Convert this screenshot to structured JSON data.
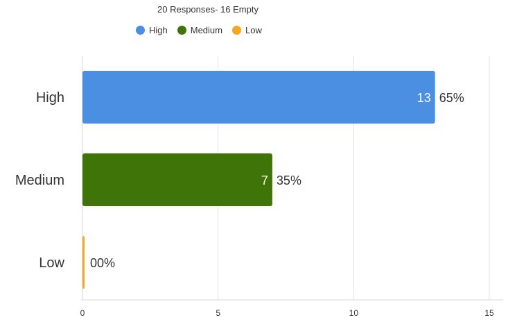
{
  "chart_data": {
    "type": "bar",
    "orientation": "horizontal",
    "subtitle": "20 Responses- 16 Empty",
    "categories": [
      "High",
      "Medium",
      "Low"
    ],
    "values": [
      13,
      7,
      0
    ],
    "percent_labels": [
      "65%",
      "35%",
      "00%"
    ],
    "colors": [
      "#4a8fe2",
      "#3f7409",
      "#f5a623"
    ],
    "xlim": [
      0,
      15
    ],
    "xticks": [
      0,
      5,
      10,
      15
    ],
    "grid": true,
    "legend": {
      "placement": "top-center",
      "entries": [
        {
          "label": "High",
          "color": "#4a8fe2"
        },
        {
          "label": "Medium",
          "color": "#3f7409"
        },
        {
          "label": "Low",
          "color": "#f5a623"
        }
      ]
    }
  }
}
